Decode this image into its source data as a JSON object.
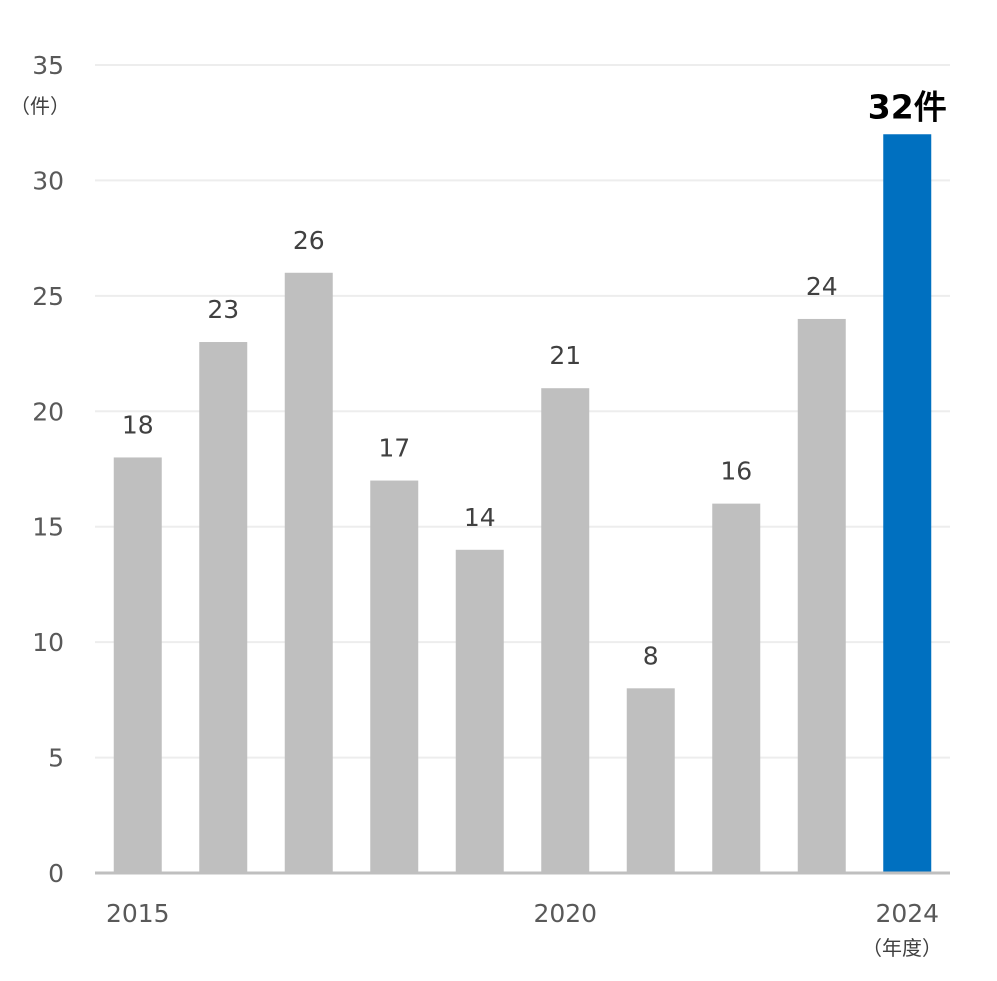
{
  "chart_data": {
    "type": "bar",
    "categories": [
      "2015",
      "",
      "",
      "",
      "",
      "2020",
      "",
      "",
      "",
      "2024"
    ],
    "values": [
      18,
      23,
      26,
      17,
      14,
      21,
      8,
      16,
      24,
      32
    ],
    "data_labels": [
      "18",
      "23",
      "26",
      "17",
      "14",
      "21",
      "8",
      "16",
      "24",
      "32件"
    ],
    "y_ticks": [
      "0",
      "5",
      "10",
      "15",
      "20",
      "25",
      "30",
      "35"
    ],
    "ylim": [
      0,
      35
    ],
    "ylabel": "（件）",
    "xlabel": "（年度）",
    "grid": true,
    "highlight_index": 9,
    "colors": {
      "bar": "#bfbfbf",
      "highlight": "#0070c0",
      "grid": "#ededed",
      "axis": "#bfbfbf"
    }
  }
}
